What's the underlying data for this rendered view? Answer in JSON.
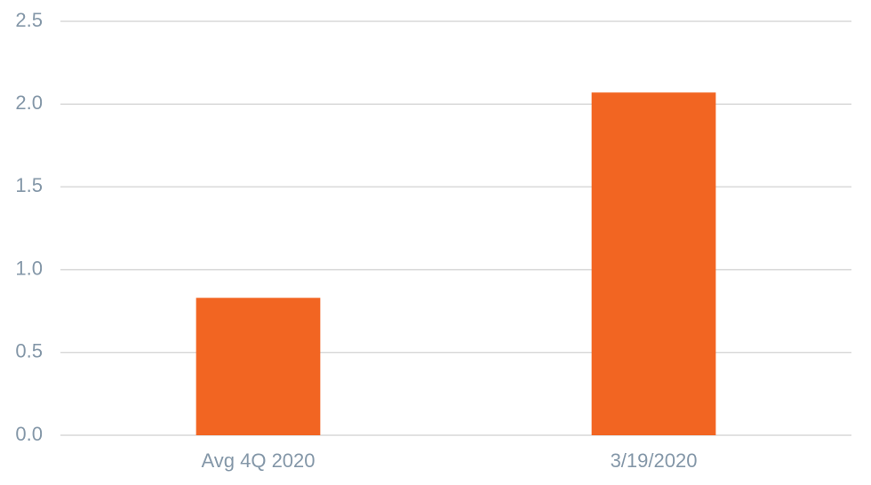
{
  "chart_data": {
    "type": "bar",
    "categories": [
      "Avg 4Q 2020",
      "3/19/2020"
    ],
    "values": [
      0.83,
      2.07
    ],
    "color": "#f26522",
    "ylim": [
      0,
      2.5
    ],
    "yticks": [
      {
        "value": 0,
        "label": "0.0"
      },
      0.5,
      {
        "value": 1,
        "label": "1.0"
      },
      1.5,
      {
        "value": 2,
        "label": "2.0"
      },
      2.5
    ],
    "grid": true
  }
}
